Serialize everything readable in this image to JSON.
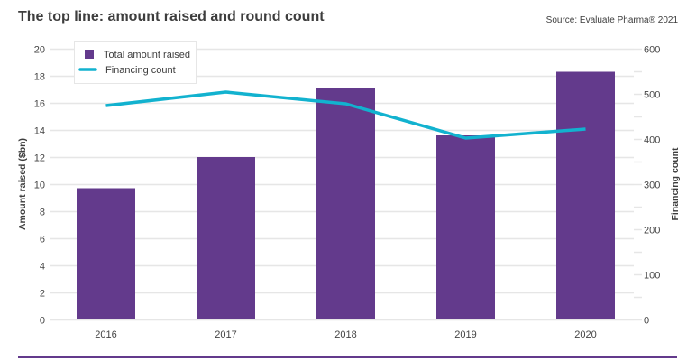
{
  "header": {
    "title": "The top line: amount raised and round count",
    "source": "Source: Evaluate Pharma® 2021"
  },
  "colors": {
    "bar": "#633a8c",
    "line": "#12b2cf",
    "grid": "#e6e6e6",
    "rule": "#633a8c"
  },
  "chart_data": {
    "type": "bar",
    "title": "The top line: amount raised and round count",
    "categories": [
      "2016",
      "2017",
      "2018",
      "2019",
      "2020"
    ],
    "series": [
      {
        "name": "Total amount raised",
        "type": "bar",
        "axis": "left",
        "values": [
          9.7,
          12.0,
          17.1,
          13.6,
          18.3
        ]
      },
      {
        "name": "Financing count",
        "type": "line",
        "axis": "right",
        "values": [
          474,
          504,
          478,
          402,
          422
        ]
      }
    ],
    "xlabel": "",
    "ylabel": "Amount raised ($bn)",
    "ylabel_right": "Financing count",
    "ylim": [
      0,
      20
    ],
    "ylim_right": [
      0,
      600
    ],
    "yticks": [
      0,
      2,
      4,
      6,
      8,
      10,
      12,
      14,
      16,
      18,
      20
    ],
    "yticks_right": [
      0,
      100,
      200,
      300,
      400,
      500,
      600
    ],
    "grid": true,
    "legend": {
      "position": "top-left",
      "entries": [
        "Total amount raised",
        "Financing count"
      ]
    }
  }
}
